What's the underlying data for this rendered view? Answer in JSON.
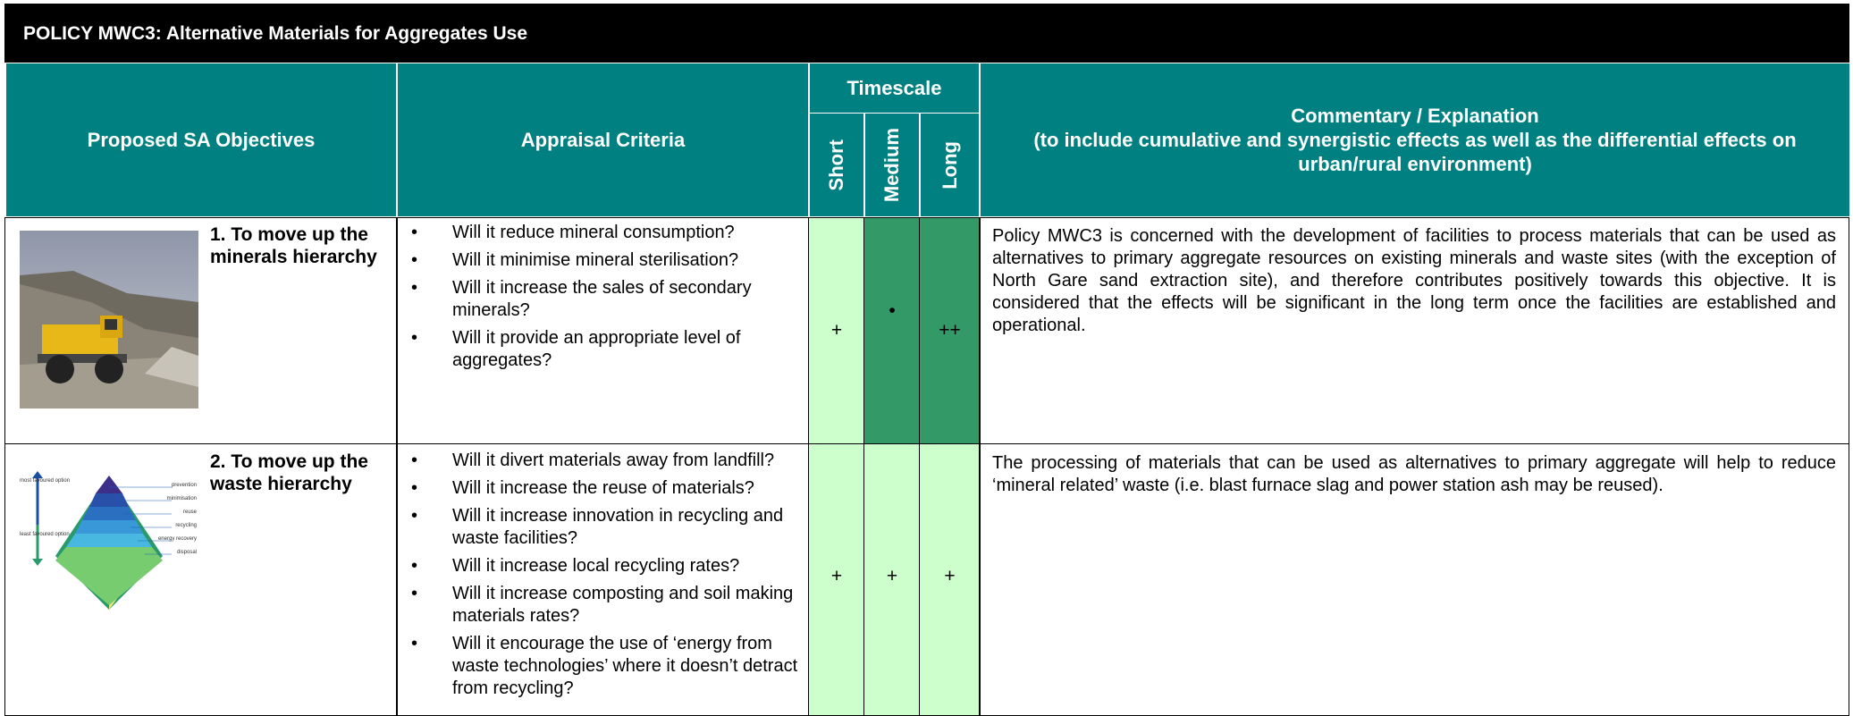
{
  "header": {
    "title": "POLICY MWC3: Alternative Materials for Aggregates Use",
    "col_objectives": "Proposed SA Objectives",
    "col_criteria": "Appraisal Criteria",
    "timescale": "Timescale",
    "short": "Short",
    "medium": "Medium",
    "long": "Long",
    "commentary_title": "Commentary / Explanation",
    "commentary_subtitle": "(to include cumulative and synergistic effects as well as the differential effects on urban/rural environment)"
  },
  "rows": [
    {
      "objective": "1. To move up the minerals hierarchy",
      "criteria": [
        "Will it reduce mineral consumption?",
        "Will it minimise mineral sterilisation?",
        "Will it increase the sales of secondary minerals?",
        "Will it provide an appropriate level of aggregates?"
      ],
      "short": "+",
      "medium": "•",
      "long": "++",
      "commentary": "Policy MWC3 is concerned with the development of facilities to process materials that can be used as alternatives to primary aggregate resources on existing minerals and waste sites (with the exception of North Gare sand extraction site), and therefore contributes positively towards this objective. It is considered that the effects will be significant in the long term once the facilities are established and operational."
    },
    {
      "objective": "2. To move up the waste hierarchy",
      "criteria": [
        "Will it divert materials away from landfill?",
        "Will it increase the reuse of materials?",
        "Will it increase innovation in recycling and waste facilities?",
        "Will it increase local recycling rates?",
        "Will it increase composting and soil making materials rates?",
        "Will it encourage the use of ‘energy from waste technologies’ where it doesn’t detract from recycling?"
      ],
      "short": "+",
      "medium": "+",
      "long": "+",
      "commentary": "The processing of materials that can be used as alternatives to primary aggregate will help to reduce ‘mineral related’ waste (i.e. blast furnace slag and power station ash may be reused).",
      "pyramid": {
        "top_note": "most favoured option",
        "bottom_note": "least favoured option",
        "levels": [
          "prevention",
          "minimisation",
          "reuse",
          "recycling",
          "energy recovery",
          "disposal"
        ]
      }
    }
  ]
}
